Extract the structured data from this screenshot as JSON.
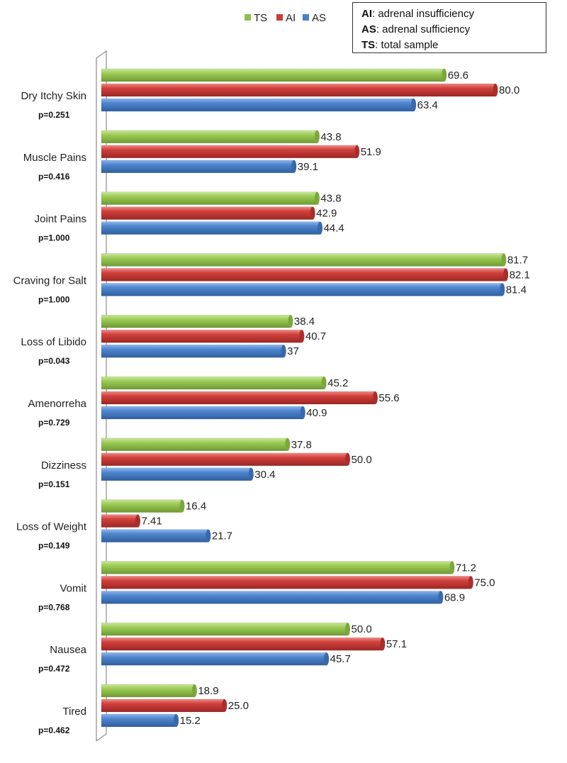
{
  "notes": [
    {
      "abbr": "AI",
      "text": ": adrenal insufficiency"
    },
    {
      "abbr": "AS",
      "text": ": adrenal sufficiency"
    },
    {
      "abbr": "TS",
      "text": ": total sample"
    }
  ],
  "chart_data": {
    "type": "bar",
    "orientation": "horizontal",
    "title": "",
    "xlabel": "",
    "ylabel": "",
    "xlim": [
      0,
      100
    ],
    "grid": false,
    "legend_position": "top",
    "categories": [
      "Dry Itchy Skin",
      "Muscle Pains",
      "Joint Pains",
      "Craving for Salt",
      "Loss of Libido",
      "Amenorreha",
      "Dizziness",
      "Loss of Weight",
      "Vomit",
      "Nausea",
      "Tired"
    ],
    "p_values": [
      "p=0.251",
      "p=0.416",
      "p=1.000",
      "p=1.000",
      "p=0.043",
      "p=0.729",
      "p=0.151",
      "p=0.149",
      "p=0.768",
      "p=0.472",
      "p=0.462"
    ],
    "series": [
      {
        "name": "TS",
        "color": "#8fbf4a",
        "values": [
          69.6,
          43.8,
          43.8,
          81.7,
          38.4,
          45.2,
          37.8,
          16.4,
          71.2,
          50.0,
          18.9
        ],
        "labels": [
          "69.6",
          "43.8",
          "43.8",
          "81.7",
          "38.4",
          "45.2",
          "37.8",
          "16.4",
          "71.2",
          "50.0",
          "18.9"
        ]
      },
      {
        "name": "AI",
        "color": "#cc3b38",
        "values": [
          80.0,
          51.9,
          42.9,
          82.1,
          40.7,
          55.6,
          50.0,
          7.41,
          75.0,
          57.1,
          25.0
        ],
        "labels": [
          "80.0",
          "51.9",
          "42.9",
          "82.1",
          "40.7",
          "55.6",
          "50.0",
          "7.41",
          "75.0",
          "57.1",
          "25.0"
        ]
      },
      {
        "name": "AS",
        "color": "#4a7fc8",
        "values": [
          63.4,
          39.1,
          44.4,
          81.4,
          37,
          40.9,
          30.4,
          21.7,
          68.9,
          45.7,
          15.2
        ],
        "labels": [
          "63.4",
          "39.1",
          "44.4",
          "81.4",
          "37",
          "40.9",
          "30.4",
          "21.7",
          "68.9",
          "45.7",
          "15.2"
        ]
      }
    ]
  }
}
